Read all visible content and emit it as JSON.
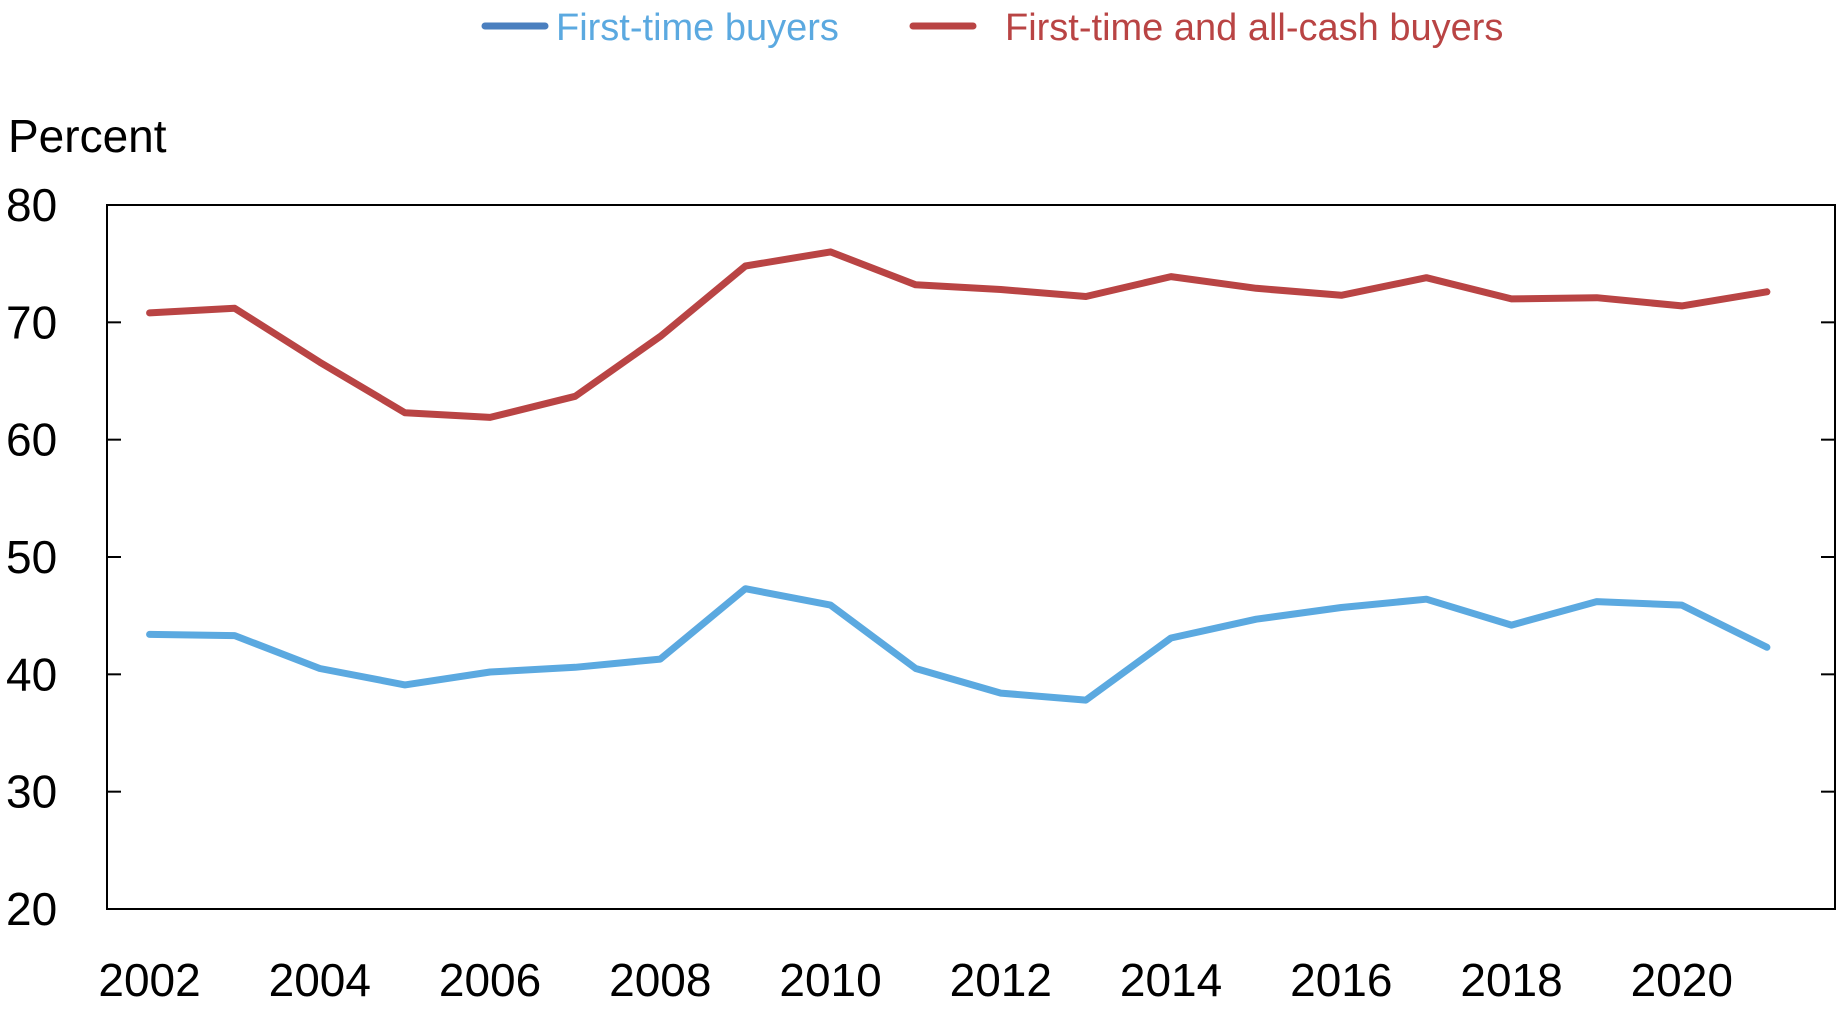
{
  "chart_data": {
    "type": "line",
    "title": "",
    "xlabel": "",
    "ylabel": "Percent",
    "ylim": [
      20,
      80
    ],
    "yticks": [
      20,
      30,
      40,
      50,
      60,
      70,
      80
    ],
    "xlim": [
      2001.5,
      2021.8
    ],
    "xticks": [
      2002,
      2004,
      2006,
      2008,
      2010,
      2012,
      2014,
      2016,
      2018,
      2020
    ],
    "grid": false,
    "legend_position": "top-center",
    "x": [
      2002,
      2003,
      2004,
      2005,
      2006,
      2007,
      2008,
      2009,
      2010,
      2011,
      2012,
      2013,
      2014,
      2015,
      2016,
      2017,
      2018,
      2019,
      2020,
      2021
    ],
    "series": [
      {
        "name": "First-time buyers",
        "color": "#5ba9e0",
        "legend_line_color": "#4a7fbf",
        "values": [
          43.4,
          43.3,
          40.5,
          39.1,
          40.2,
          40.6,
          41.3,
          47.3,
          45.9,
          40.5,
          38.4,
          37.8,
          43.1,
          44.7,
          45.7,
          46.4,
          44.2,
          46.2,
          45.9,
          42.3
        ]
      },
      {
        "name": "First-time and all-cash buyers",
        "color": "#b94444",
        "legend_line_color": "#b94444",
        "values": [
          70.8,
          71.2,
          66.6,
          62.3,
          61.9,
          63.7,
          68.8,
          74.8,
          76.0,
          73.2,
          72.8,
          72.2,
          73.9,
          72.9,
          72.3,
          73.8,
          72.0,
          72.1,
          71.4,
          72.6
        ]
      }
    ]
  }
}
